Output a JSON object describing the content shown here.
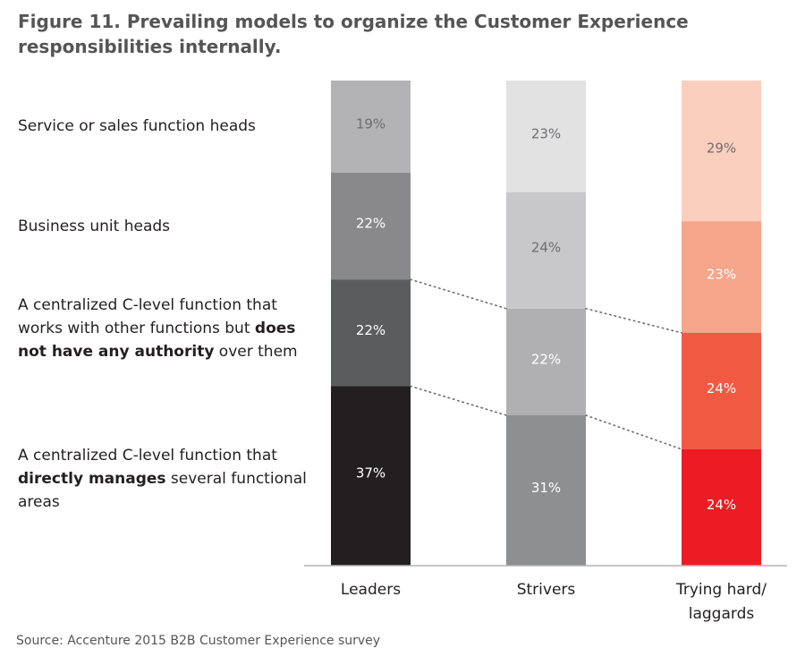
{
  "title": "Figure 11. Prevailing models to organize the Customer Experience responsibilities internally.",
  "source": "Source: Accenture 2015 B2B Customer Experience survey",
  "category_labels": [
    {
      "parts": [
        {
          "text": "Service or sales function heads",
          "bold": false
        }
      ]
    },
    {
      "parts": [
        {
          "text": "Business unit heads",
          "bold": false
        }
      ]
    },
    {
      "parts": [
        {
          "text": "A centralized C-level function that works with other functions but ",
          "bold": false
        },
        {
          "text": "does not have any authority",
          "bold": true
        },
        {
          "text": " over them",
          "bold": false
        }
      ]
    },
    {
      "parts": [
        {
          "text": "A centralized C-level function that ",
          "bold": false
        },
        {
          "text": "directly manages",
          "bold": true
        },
        {
          "text": " several functional areas",
          "bold": false
        }
      ]
    }
  ],
  "chart_data": {
    "type": "bar",
    "stacked": true,
    "percent_stacked": true,
    "categories": [
      "Leaders",
      "Strivers",
      "Trying hard/ laggards"
    ],
    "category_lines": [
      [
        "Leaders"
      ],
      [
        "Strivers"
      ],
      [
        "Trying hard/",
        "laggards"
      ]
    ],
    "series": [
      {
        "name": "Service or sales function heads",
        "values": [
          19,
          23,
          29
        ]
      },
      {
        "name": "Business unit heads",
        "values": [
          22,
          24,
          23
        ]
      },
      {
        "name": "A centralized C-level function that works with other functions but does not have any authority over them",
        "values": [
          22,
          22,
          24
        ]
      },
      {
        "name": "A centralized C-level function that directly manages several functional areas",
        "values": [
          37,
          31,
          24
        ]
      }
    ],
    "value_labels": [
      [
        "19%",
        "22%",
        "22%",
        "37%"
      ],
      [
        "23%",
        "24%",
        "22%",
        "31%"
      ],
      [
        "29%",
        "23%",
        "24%",
        "24%"
      ]
    ],
    "colors": [
      [
        "#b3b3b5",
        "#89898b",
        "#5b5c5e",
        "#231f20"
      ],
      [
        "#e2e2e3",
        "#c8c8ca",
        "#b0b0b2",
        "#8e8f91"
      ],
      [
        "#fbcfbe",
        "#f4a58a",
        "#f05a43",
        "#ed1c24"
      ]
    ],
    "label_colors": [
      [
        "#6e6e70",
        "#ffffff",
        "#ffffff",
        "#ffffff"
      ],
      [
        "#6e6e70",
        "#6e6e70",
        "#ffffff",
        "#ffffff"
      ],
      [
        "#6e6e70",
        "#ffffff",
        "#ffffff",
        "#ffffff"
      ]
    ],
    "connectors": "dotted lines join the boundaries of the two lowest segments across bars",
    "axis_color": "#b3b3b5"
  }
}
